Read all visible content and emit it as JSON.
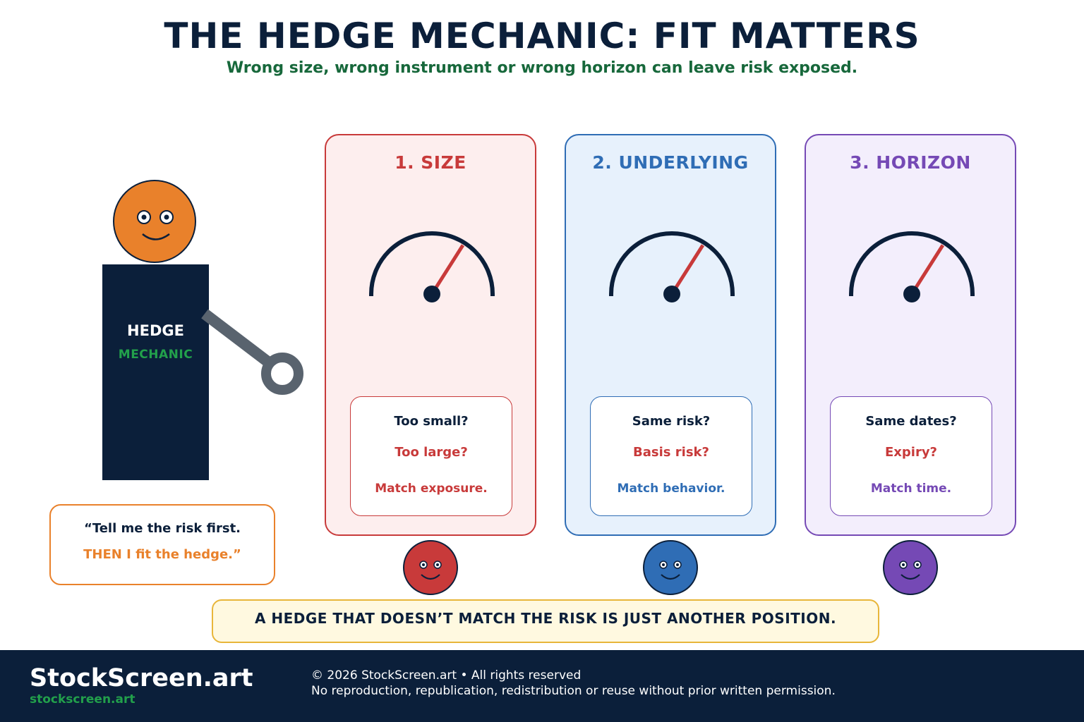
{
  "header": {
    "title": "THE HEDGE MECHANIC: FIT MATTERS",
    "subtitle": "Wrong size, wrong instrument or wrong horizon can leave risk exposed."
  },
  "mechanic": {
    "label_top": "HEDGE",
    "label_bottom": "MECHANIC",
    "speech_line1": "“Tell me the risk first.",
    "speech_line2": "THEN I fit the hedge.”"
  },
  "cards": [
    {
      "title": "1. SIZE",
      "q1": "Too small?",
      "q2": "Too large?",
      "q3": "Match exposure.",
      "accent": "#c83a3a",
      "bg": "#fdeeee",
      "gauge_level": 0.68
    },
    {
      "title": "2. UNDERLYING",
      "q1": "Same risk?",
      "q2": "Basis risk?",
      "q3": "Match behavior.",
      "accent": "#2f6db5",
      "bg": "#e7f1fc",
      "gauge_level": 0.68
    },
    {
      "title": "3. HORIZON",
      "q1": "Same dates?",
      "q2": "Expiry?",
      "q3": "Match time.",
      "accent": "#7549b5",
      "bg": "#f3eefc",
      "gauge_level": 0.68
    }
  ],
  "banner": "A HEDGE THAT DOESN’T MATCH THE RISK IS JUST ANOTHER POSITION.",
  "footer": {
    "brand": "StockScreen.art",
    "url": "stockscreen.art",
    "copyright": "© 2026 StockScreen.art • All rights reserved",
    "notice": "No reproduction, republication, redistribution or reuse without prior written permission."
  },
  "colors": {
    "navy": "#0b1f3a",
    "green": "#17683b",
    "orange": "#e9812b",
    "needle": "#c83a3a"
  }
}
